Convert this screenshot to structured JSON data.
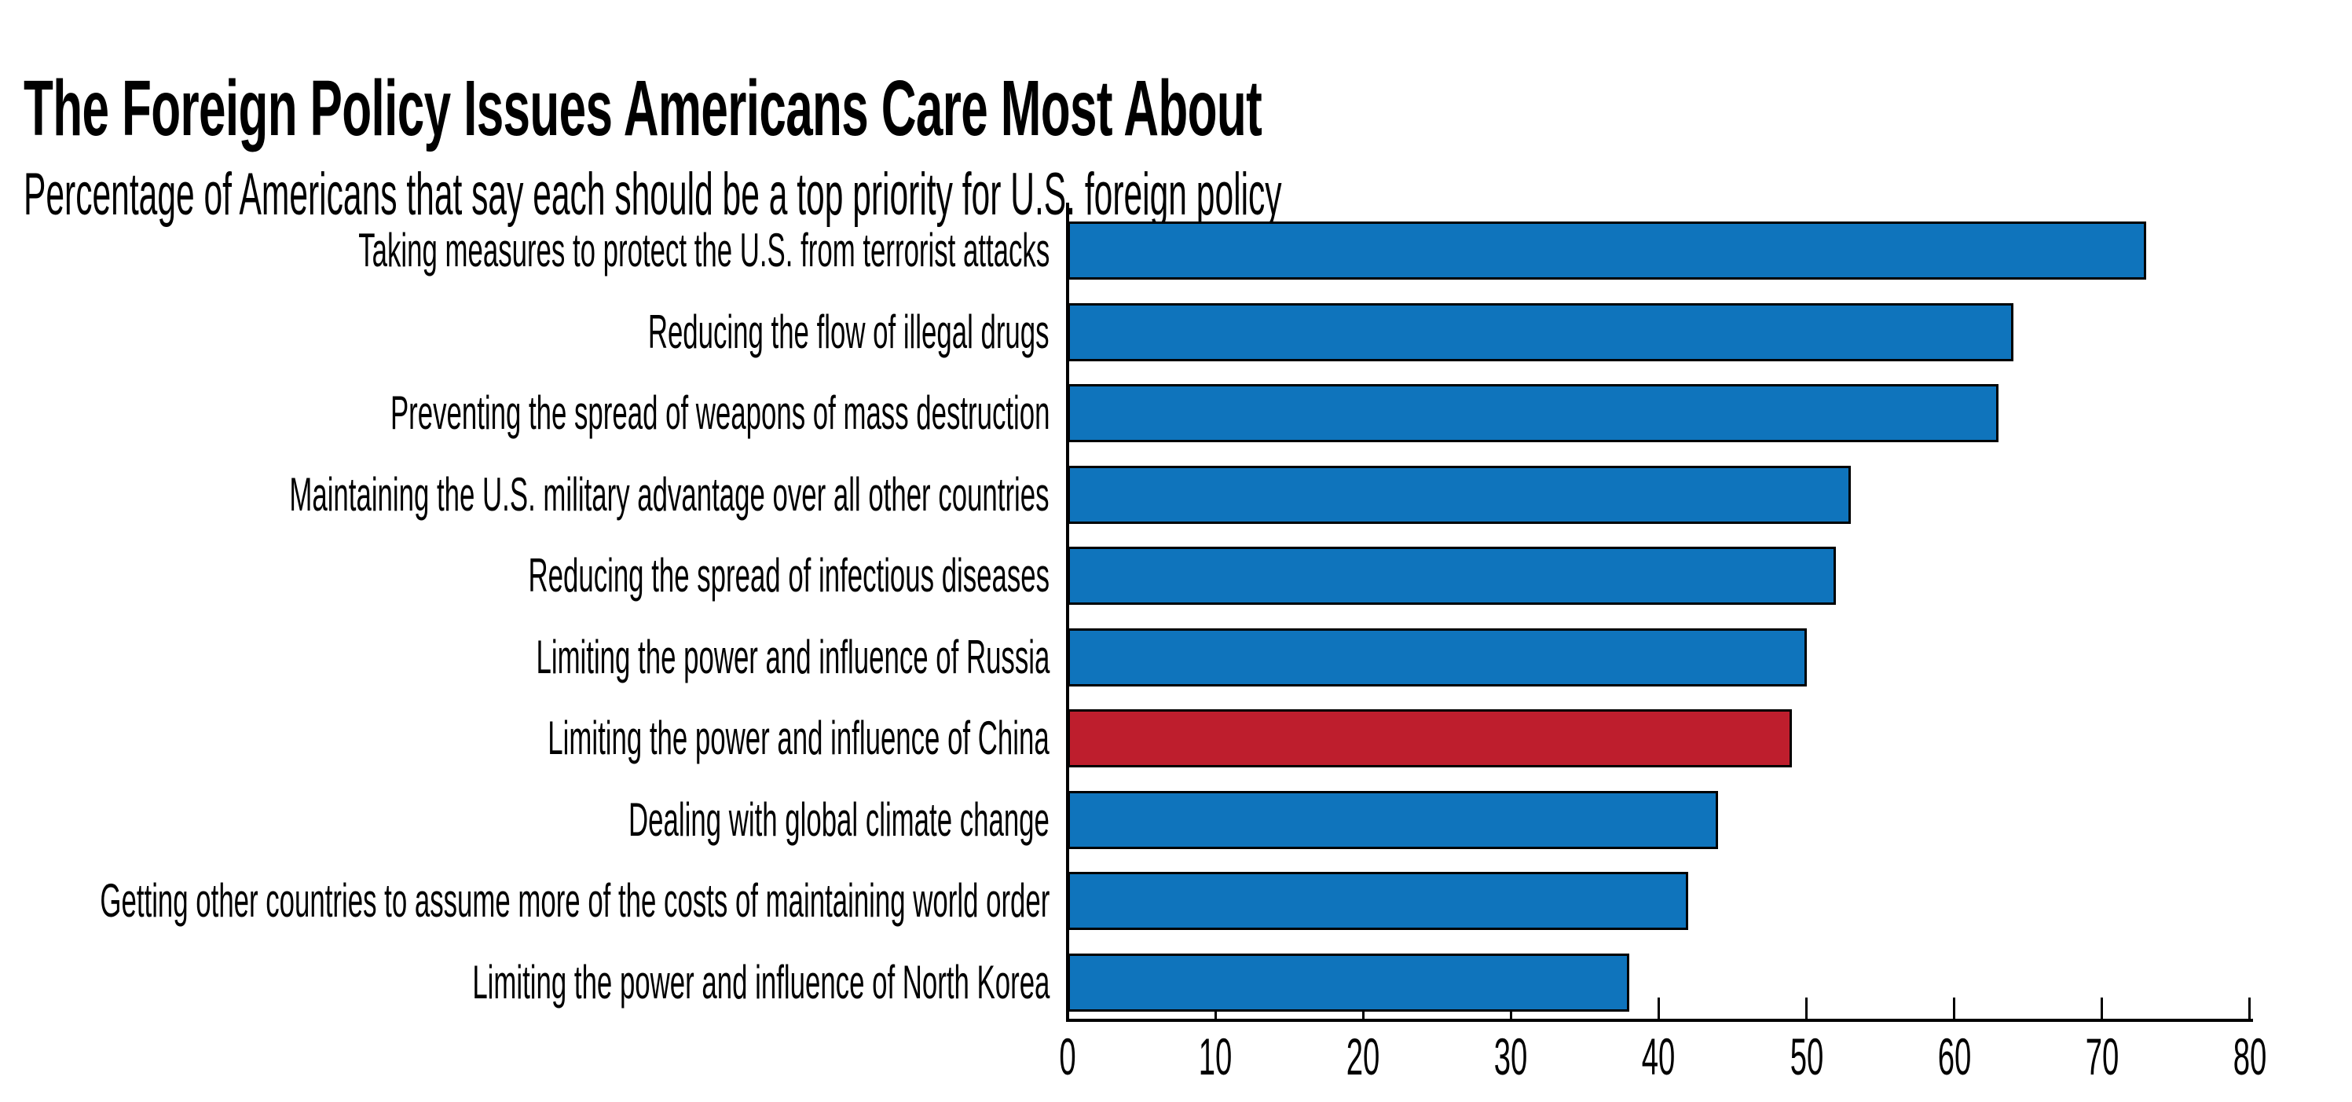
{
  "title": "The Foreign Policy Issues Americans Care Most About",
  "subtitle": "Percentage of Americans that say each should be a top priority for U.S. foreign policy",
  "chart_data": {
    "type": "bar",
    "orientation": "horizontal",
    "title": "The Foreign Policy Issues Americans Care Most About",
    "subtitle": "Percentage of Americans that say each should be a top priority for U.S. foreign policy",
    "categories": [
      "Taking measures to protect the U.S. from terrorist attacks",
      "Reducing the flow of illegal drugs",
      "Preventing the spread of weapons of mass destruction",
      "Maintaining the U.S. military advantage over all other countries",
      "Reducing the spread of infectious diseases",
      "Limiting the power and influence of Russia",
      "Limiting the power and influence of China",
      "Dealing with global climate change",
      "Getting other countries to assume more of the costs of maintaining world order",
      "Limiting the power and influence of North Korea"
    ],
    "values": [
      73,
      64,
      63,
      53,
      52,
      50,
      49,
      44,
      42,
      38
    ],
    "xlabel": "",
    "ylabel": "",
    "xlim": [
      0,
      80
    ],
    "x_ticks": [
      0,
      10,
      20,
      30,
      40,
      50,
      60,
      70,
      80
    ],
    "grid": false,
    "legend": null,
    "bar_color": "#0f74bc",
    "highlight_index": 6,
    "highlight_color": "#be1e2d",
    "bar_outline_color": "#000000",
    "axis_color": "#000000",
    "text_color": "#000000",
    "background_color": "#ffffff"
  }
}
